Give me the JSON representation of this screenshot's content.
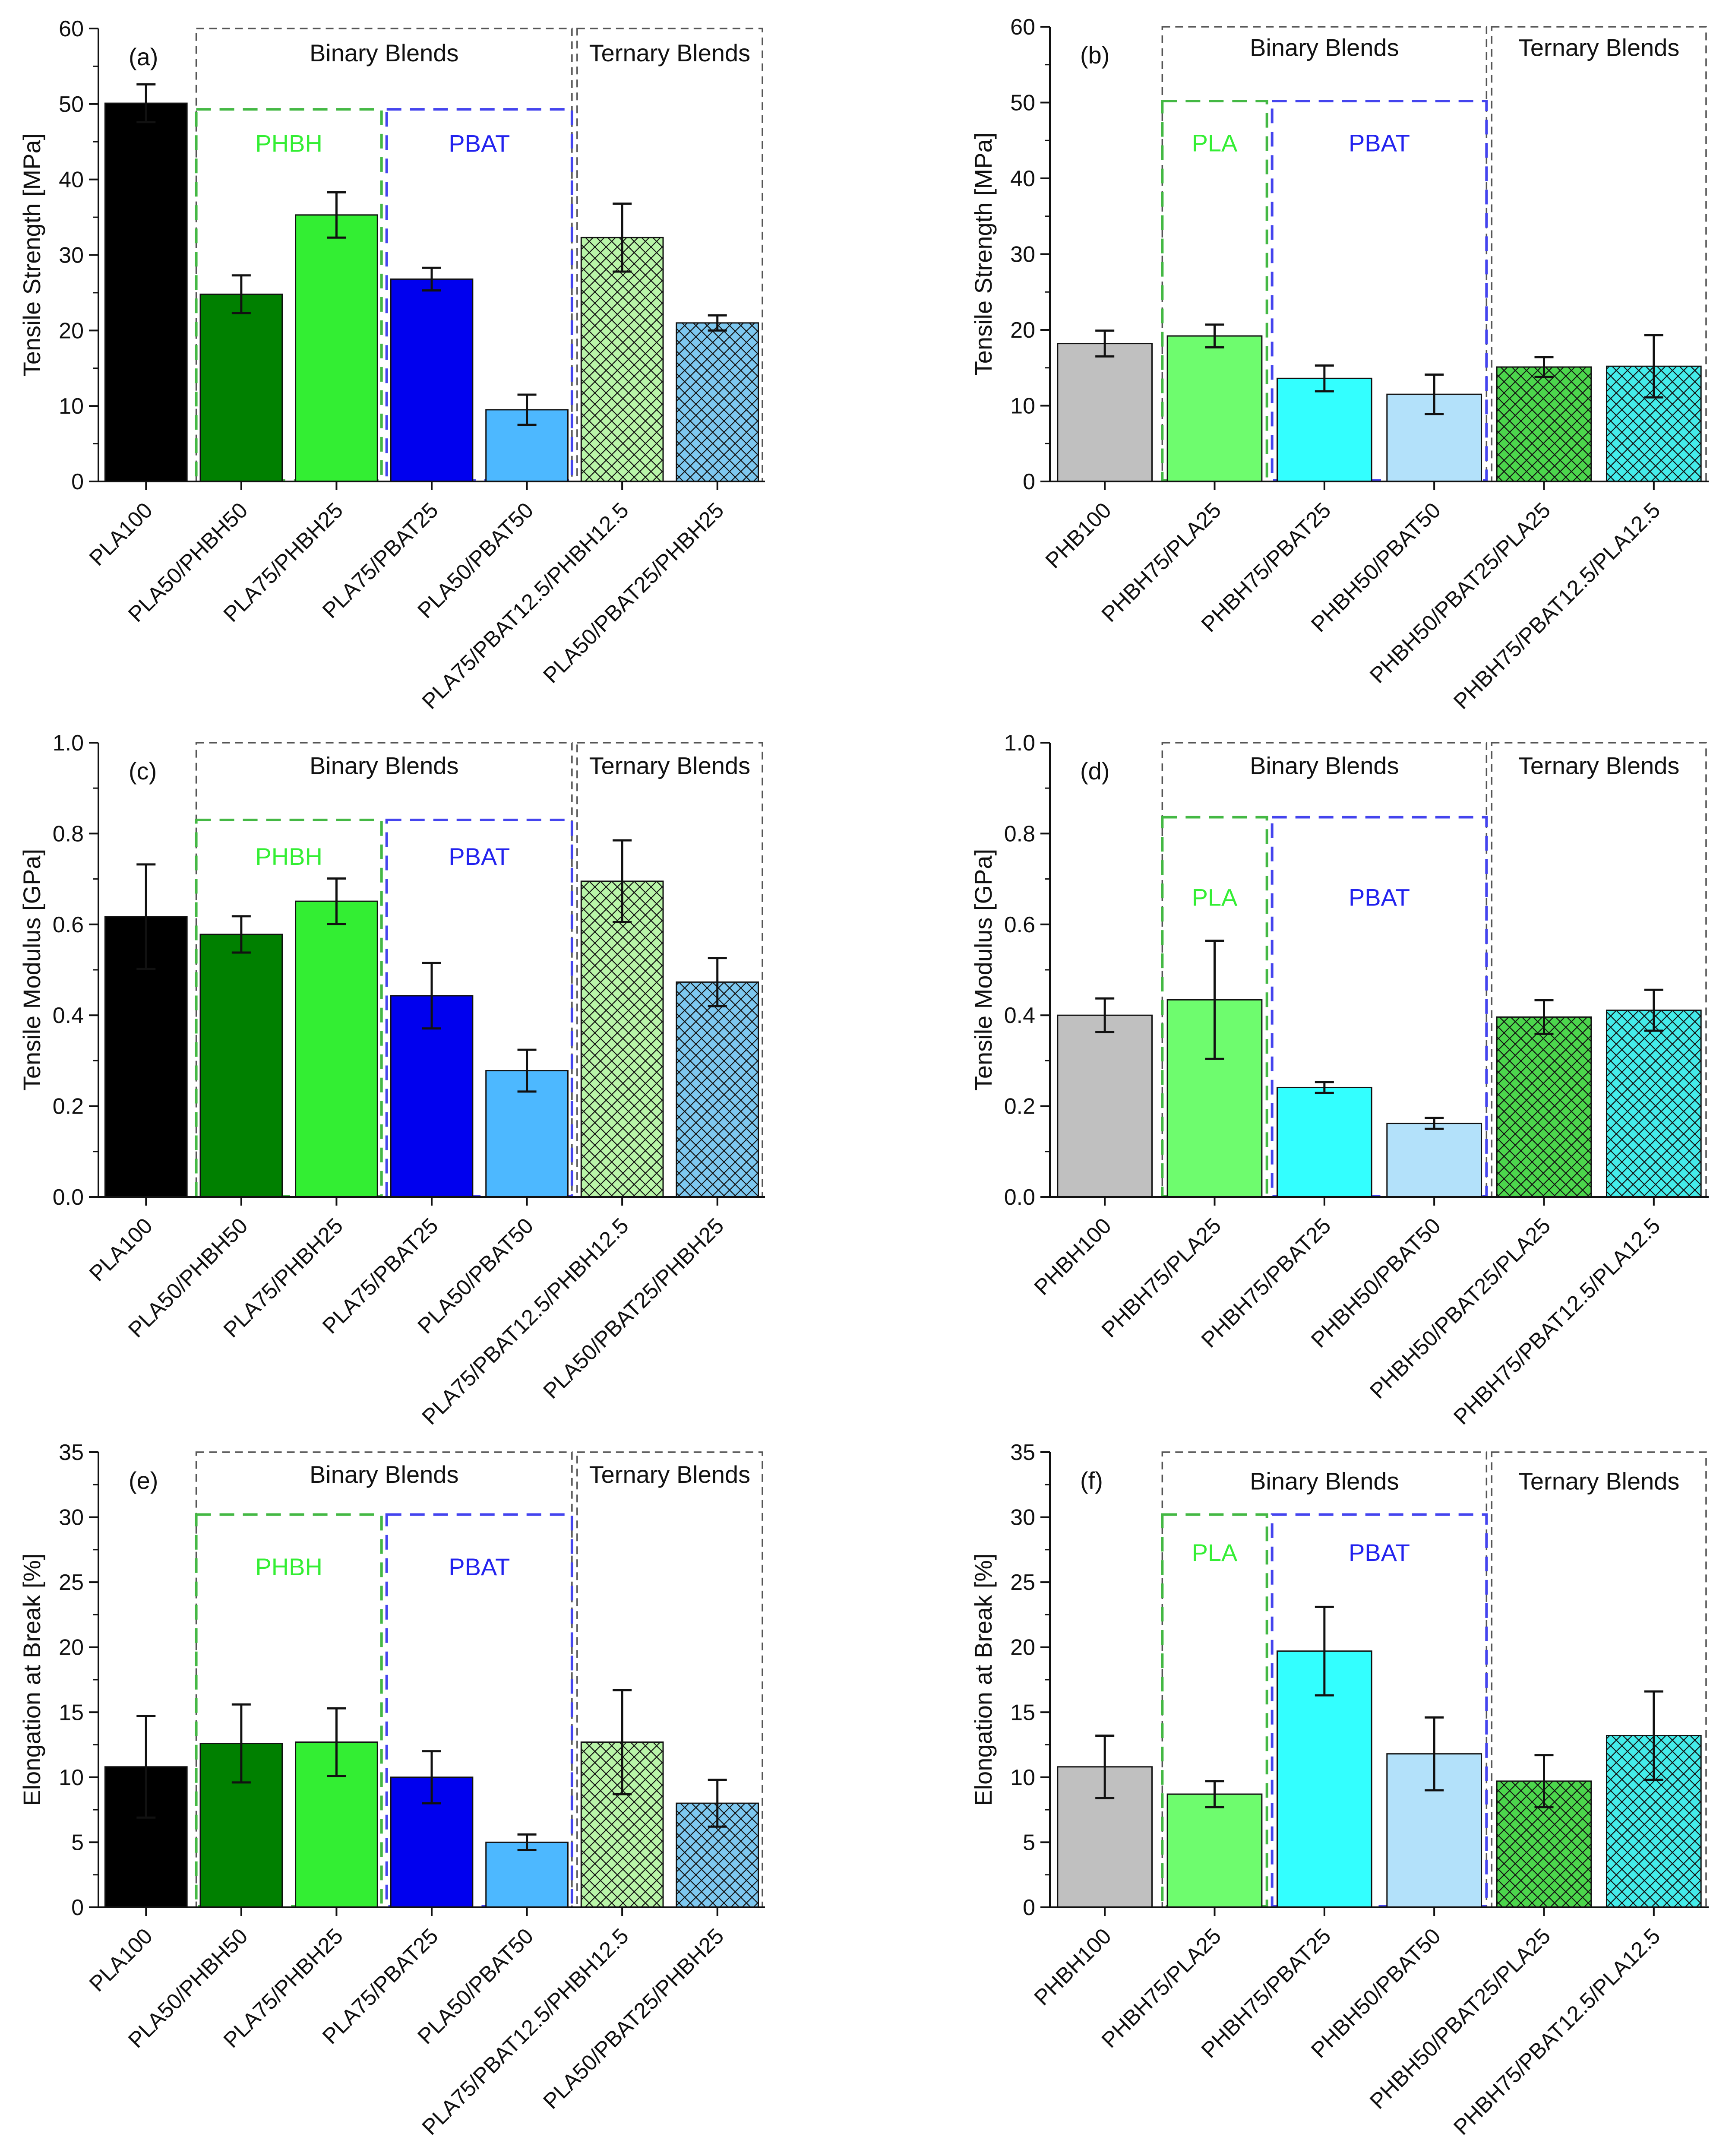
{
  "chart_data": [
    {
      "type": "bar",
      "panel": "(a)",
      "ylabel": "Tensile Strength [MPa]",
      "ylim": [
        0,
        60
      ],
      "yticks": [
        "0",
        "10",
        "20",
        "30",
        "40",
        "50",
        "60"
      ],
      "categories": [
        "PLA100",
        "PLA50/PHBH50",
        "PLA75/PHBH25",
        "PLA75/PBAT25",
        "PLA50/PBAT50",
        "PLA75/PBAT12.5/PHBH12.5",
        "PLA50/PBAT25/PHBH25"
      ],
      "values": [
        50.1,
        24.8,
        35.3,
        26.8,
        9.5,
        32.3,
        21.0
      ],
      "errors": [
        2.5,
        2.5,
        3.0,
        1.5,
        2.0,
        4.5,
        1.0
      ],
      "colors": [
        "#000000",
        "#008000",
        "#33ee33",
        "#0000ee",
        "#4db8ff",
        "#b9f5a8",
        "#7ec8f0"
      ],
      "hatch": [
        false,
        false,
        false,
        false,
        false,
        true,
        true
      ],
      "groups": [
        {
          "label": "Binary Blends",
          "color": "#555555",
          "cats": [
            1,
            4
          ],
          "top": 60,
          "labelY": 56.8
        },
        {
          "label": "Ternary  Blends",
          "color": "#555555",
          "cats": [
            5,
            6
          ],
          "top": 60,
          "labelY": 56.8
        },
        {
          "label": "PHBH",
          "color": "#44b844",
          "textColor": "#33ee33",
          "cats": [
            1,
            2
          ],
          "top": 49.3,
          "labelY": 44.8
        },
        {
          "label": "PBAT",
          "color": "#4444ee",
          "textColor": "#2222ee",
          "cats": [
            3,
            4
          ],
          "top": 49.3,
          "labelY": 44.8
        }
      ]
    },
    {
      "type": "bar",
      "panel": "(b)",
      "ylabel": "Tensile Strength [MPa]",
      "ylim": [
        0,
        60
      ],
      "yticks": [
        "0",
        "10",
        "20",
        "30",
        "40",
        "50",
        "60"
      ],
      "categories": [
        "PHB100",
        "PHBH75/PLA25",
        "PHBH75/PBAT25",
        "PHBH50/PBAT50",
        "PHBH50/PBAT25/PLA25",
        "PHBH75/PBAT12.5/PLA12.5"
      ],
      "values": [
        18.2,
        19.2,
        13.6,
        11.5,
        15.1,
        15.2
      ],
      "errors": [
        1.7,
        1.5,
        1.7,
        2.6,
        1.3,
        4.1
      ],
      "colors": [
        "#c0c0c0",
        "#6efc6e",
        "#33ffff",
        "#b3e1fa",
        "#4cd64c",
        "#44ecea"
      ],
      "hatch": [
        false,
        false,
        false,
        false,
        true,
        true
      ],
      "groups": [
        {
          "label": "Binary Blends",
          "color": "#555555",
          "cats": [
            1,
            3
          ],
          "top": 60,
          "labelY": 57.3
        },
        {
          "label": "Ternary  Blends",
          "color": "#555555",
          "cats": [
            4,
            5
          ],
          "top": 60,
          "labelY": 57.3
        },
        {
          "label": "PLA",
          "color": "#44b844",
          "textColor": "#33ee33",
          "cats": [
            1,
            1
          ],
          "top": 50.2,
          "labelY": 44.7
        },
        {
          "label": "PBAT",
          "color": "#4444ee",
          "textColor": "#2222ee",
          "cats": [
            2,
            3
          ],
          "top": 50.2,
          "labelY": 44.7
        }
      ]
    },
    {
      "type": "bar",
      "panel": "(c)",
      "ylabel": "Tensile Modulus [GPa]",
      "ylim": [
        0,
        1.0
      ],
      "yticks": [
        "0.0",
        "0.2",
        "0.4",
        "0.6",
        "0.8",
        "1.0"
      ],
      "categories": [
        "PLA100",
        "PLA50/PHBH50",
        "PLA75/PHBH25",
        "PLA75/PBAT25",
        "PLA50/PBAT50",
        "PLA75/PBAT12.5/PHBH12.5",
        "PLA50/PBAT25/PHBH25"
      ],
      "values": [
        0.617,
        0.578,
        0.651,
        0.443,
        0.278,
        0.695,
        0.473
      ],
      "errors": [
        0.115,
        0.04,
        0.05,
        0.072,
        0.046,
        0.09,
        0.053
      ],
      "colors": [
        "#000000",
        "#008000",
        "#33ee33",
        "#0000ee",
        "#4db8ff",
        "#b9f5a8",
        "#7ec8f0"
      ],
      "hatch": [
        false,
        false,
        false,
        false,
        false,
        true,
        true
      ],
      "groups": [
        {
          "label": "Binary Blends",
          "color": "#555555",
          "cats": [
            1,
            4
          ],
          "top": 1.0,
          "labelY": 0.95
        },
        {
          "label": "Ternary  Blends",
          "color": "#555555",
          "cats": [
            5,
            6
          ],
          "top": 1.0,
          "labelY": 0.95
        },
        {
          "label": "PHBH",
          "color": "#44b844",
          "textColor": "#33ee33",
          "cats": [
            1,
            2
          ],
          "top": 0.83,
          "labelY": 0.75
        },
        {
          "label": "PBAT",
          "color": "#4444ee",
          "textColor": "#2222ee",
          "cats": [
            3,
            4
          ],
          "top": 0.83,
          "labelY": 0.75
        }
      ]
    },
    {
      "type": "bar",
      "panel": "(d)",
      "ylabel": "Tensile Modulus [GPa]",
      "ylim": [
        0,
        1.0
      ],
      "yticks": [
        "0.0",
        "0.2",
        "0.4",
        "0.6",
        "0.8",
        "1.0"
      ],
      "categories": [
        "PHBH100",
        "PHBH75/PLA25",
        "PHBH75/PBAT25",
        "PHBH50/PBAT50",
        "PHBH50/PBAT25/PLA25",
        "PHBH75/PBAT12.5/PLA12.5"
      ],
      "values": [
        0.4,
        0.434,
        0.241,
        0.162,
        0.396,
        0.411
      ],
      "errors": [
        0.037,
        0.13,
        0.012,
        0.012,
        0.037,
        0.045
      ],
      "colors": [
        "#c0c0c0",
        "#6efc6e",
        "#33ffff",
        "#b3e1fa",
        "#4cd64c",
        "#44ecea"
      ],
      "hatch": [
        false,
        false,
        false,
        false,
        true,
        true
      ],
      "groups": [
        {
          "label": "Binary Blends",
          "color": "#555555",
          "cats": [
            1,
            3
          ],
          "top": 1.0,
          "labelY": 0.95
        },
        {
          "label": "Ternary  Blends",
          "color": "#555555",
          "cats": [
            4,
            5
          ],
          "top": 1.0,
          "labelY": 0.95
        },
        {
          "label": "PLA",
          "color": "#44b844",
          "textColor": "#33ee33",
          "cats": [
            1,
            1
          ],
          "top": 0.836,
          "labelY": 0.66
        },
        {
          "label": "PBAT",
          "color": "#4444ee",
          "textColor": "#2222ee",
          "cats": [
            2,
            3
          ],
          "top": 0.836,
          "labelY": 0.66
        }
      ]
    },
    {
      "type": "bar",
      "panel": "(e)",
      "ylabel": "Elongation at Break  [%]",
      "ylim": [
        0,
        35
      ],
      "yticks": [
        "0",
        "5",
        "10",
        "15",
        "20",
        "25",
        "30",
        "35"
      ],
      "categories": [
        "PLA100",
        "PLA50/PHBH50",
        "PLA75/PHBH25",
        "PLA75/PBAT25",
        "PLA50/PBAT50",
        "PLA75/PBAT12.5/PHBH12.5",
        "PLA50/PBAT25/PHBH25"
      ],
      "values": [
        10.8,
        12.6,
        12.7,
        10.0,
        5.0,
        12.7,
        8.0
      ],
      "errors": [
        3.9,
        3.0,
        2.6,
        2.0,
        0.6,
        4.0,
        1.8
      ],
      "colors": [
        "#000000",
        "#008000",
        "#33ee33",
        "#0000ee",
        "#4db8ff",
        "#b9f5a8",
        "#7ec8f0"
      ],
      "hatch": [
        false,
        false,
        false,
        false,
        false,
        true,
        true
      ],
      "groups": [
        {
          "label": "Binary Blends",
          "color": "#555555",
          "cats": [
            1,
            4
          ],
          "top": 35,
          "labelY": 33.3
        },
        {
          "label": "Ternary  Blends",
          "color": "#555555",
          "cats": [
            5,
            6
          ],
          "top": 35,
          "labelY": 33.3
        },
        {
          "label": "PHBH",
          "color": "#44b844",
          "textColor": "#33ee33",
          "cats": [
            1,
            2
          ],
          "top": 30.2,
          "labelY": 26.2
        },
        {
          "label": "PBAT",
          "color": "#4444ee",
          "textColor": "#2222ee",
          "cats": [
            3,
            4
          ],
          "top": 30.2,
          "labelY": 26.2
        }
      ]
    },
    {
      "type": "bar",
      "panel": "(f)",
      "ylabel": "Elongation at Break  [%]",
      "ylim": [
        0,
        35
      ],
      "yticks": [
        "0",
        "5",
        "10",
        "15",
        "20",
        "25",
        "30",
        "35"
      ],
      "categories": [
        "PHBH100",
        "PHBH75/PLA25",
        "PHBH75/PBAT25",
        "PHBH50/PBAT50",
        "PHBH50/PBAT25/PLA25",
        "PHBH75/PBAT12.5/PLA12.5"
      ],
      "values": [
        10.8,
        8.7,
        19.7,
        11.8,
        9.7,
        13.2
      ],
      "errors": [
        2.4,
        1.0,
        3.4,
        2.8,
        2.0,
        3.4
      ],
      "colors": [
        "#c0c0c0",
        "#6efc6e",
        "#33ffff",
        "#b3e1fa",
        "#4cd64c",
        "#44ecea"
      ],
      "hatch": [
        false,
        false,
        false,
        false,
        true,
        true
      ],
      "groups": [
        {
          "label": "Binary Blends",
          "color": "#555555",
          "cats": [
            1,
            3
          ],
          "top": 35,
          "labelY": 32.8
        },
        {
          "label": "Ternary  Blends",
          "color": "#555555",
          "cats": [
            4,
            5
          ],
          "top": 35,
          "labelY": 32.8
        },
        {
          "label": "PLA",
          "color": "#44b844",
          "textColor": "#33ee33",
          "cats": [
            1,
            1
          ],
          "top": 30.2,
          "labelY": 27.3
        },
        {
          "label": "PBAT",
          "color": "#4444ee",
          "textColor": "#2222ee",
          "cats": [
            2,
            3
          ],
          "top": 30.2,
          "labelY": 27.3
        }
      ]
    }
  ]
}
